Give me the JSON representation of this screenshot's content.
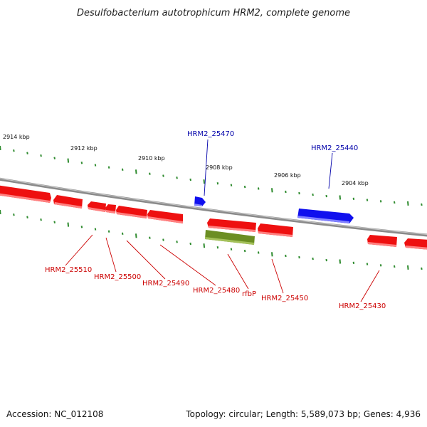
{
  "title": "Desulfobacterium autotrophicum HRM2, complete genome",
  "footer": {
    "accession": "Accession: NC_012108",
    "summary": "Topology: circular; Length: 5,589,073 bp; Genes: 4,936"
  },
  "colors": {
    "backbone": "#8a8a8a",
    "forward_gene": "#1010ee",
    "reverse_gene": "#ee1010",
    "rna_gene": "#6b8e23",
    "tick": "#2e8b2e",
    "forward_label": "#0000aa",
    "reverse_label": "#cc0000"
  },
  "scale_labels": [
    "2914 kbp",
    "2912 kbp",
    "2910 kbp",
    "2908 kbp",
    "2906 kbp",
    "2904 kbp"
  ],
  "features": [
    {
      "name": "HRM2_25510",
      "strand": "reverse"
    },
    {
      "name": "HRM2_25500",
      "strand": "reverse"
    },
    {
      "name": "HRM2_25490",
      "strand": "reverse"
    },
    {
      "name": "HRM2_25480",
      "strand": "reverse"
    },
    {
      "name": "rfbP",
      "strand": "reverse",
      "type": "rna"
    },
    {
      "name": "HRM2_25470",
      "strand": "forward"
    },
    {
      "name": "HRM2_25450",
      "strand": "reverse"
    },
    {
      "name": "HRM2_25440",
      "strand": "forward"
    },
    {
      "name": "HRM2_25430",
      "strand": "reverse"
    }
  ]
}
